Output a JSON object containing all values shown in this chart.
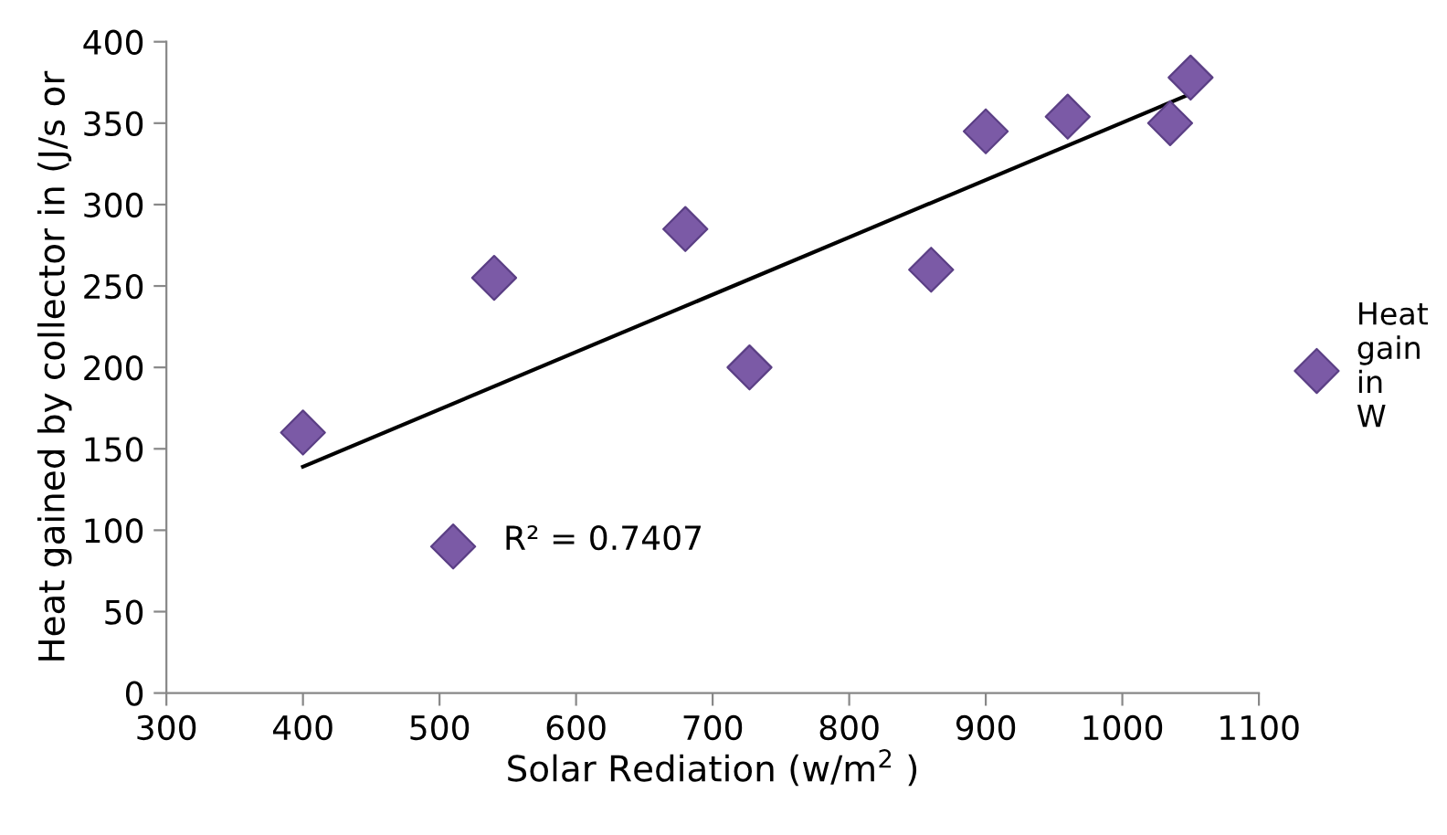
{
  "chart_data": {
    "type": "scatter",
    "xlabel": "Solar Rediation (w/m$^{2}$ )",
    "ylabel": "Heat gained by collector in (J/s or",
    "x": [
      400,
      510,
      540,
      680,
      727,
      860,
      900,
      960,
      1035,
      1050
    ],
    "series": [
      {
        "name": "Heat gain in W",
        "color": "#7b5aa6",
        "marker": "diamond",
        "values": [
          160,
          90,
          255,
          285,
          200,
          260,
          345,
          354,
          350,
          378
        ]
      },
      {
        "type": "line",
        "color": "#000000",
        "marker": "none",
        "x": [
          400,
          1050
        ],
        "values": [
          139,
          368
        ]
      }
    ],
    "annotations": [
      "R² = 0.7407"
    ],
    "xlim": [
      300,
      1100
    ],
    "xticks": [
      300,
      400,
      500,
      600,
      700,
      800,
      900,
      1000,
      1100
    ],
    "ylim": [
      0,
      400
    ],
    "yticks": [
      0,
      50,
      100,
      150,
      200,
      250,
      300,
      350,
      400
    ],
    "grid": false,
    "legend": "right"
  }
}
